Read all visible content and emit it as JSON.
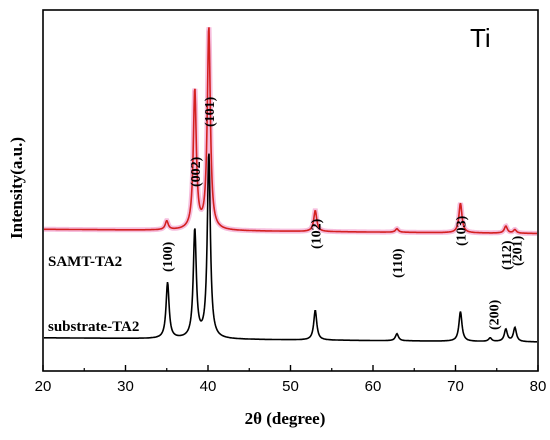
{
  "chart_data": {
    "type": "line",
    "title": "",
    "annotation": "Ti",
    "xlabel": "2θ (degree)",
    "ylabel": "Intensity(a.u.)",
    "xlim": [
      20,
      80
    ],
    "xticks": [
      20,
      30,
      40,
      50,
      60,
      70,
      80
    ],
    "grid": false,
    "series": [
      {
        "name": "SAMT-TA2",
        "color": "#d42020",
        "baseline": 0.31,
        "peaks": [
          {
            "x": 35.0,
            "height": 0.025
          },
          {
            "x": 38.4,
            "height": 0.4
          },
          {
            "x": 40.1,
            "height": 0.58
          },
          {
            "x": 53.0,
            "height": 0.06
          },
          {
            "x": 62.9,
            "height": 0.01
          },
          {
            "x": 70.6,
            "height": 0.085
          },
          {
            "x": 76.1,
            "height": 0.02
          },
          {
            "x": 77.2,
            "height": 0.01
          }
        ]
      },
      {
        "name": "substrate-TA2",
        "color": "#000000",
        "baseline": 0.0,
        "peaks": [
          {
            "x": 35.1,
            "height": 0.16
          },
          {
            "x": 38.4,
            "height": 0.31
          },
          {
            "x": 40.1,
            "height": 0.53
          },
          {
            "x": 53.0,
            "height": 0.085
          },
          {
            "x": 62.9,
            "height": 0.02
          },
          {
            "x": 70.6,
            "height": 0.085
          },
          {
            "x": 74.2,
            "height": 0.01
          },
          {
            "x": 76.1,
            "height": 0.035
          },
          {
            "x": 77.2,
            "height": 0.04
          }
        ]
      }
    ],
    "peak_labels": [
      {
        "text": "(100)",
        "x": 35.0
      },
      {
        "text": "(002)",
        "x": 38.4
      },
      {
        "text": "(101)",
        "x": 40.1
      },
      {
        "text": "(102)",
        "x": 53.0
      },
      {
        "text": "(110)",
        "x": 62.9
      },
      {
        "text": "(103)",
        "x": 70.6
      },
      {
        "text": "(112)",
        "x": 76.1
      },
      {
        "text": "(201)",
        "x": 77.4
      },
      {
        "text": "(200)",
        "x": 74.6
      }
    ]
  }
}
